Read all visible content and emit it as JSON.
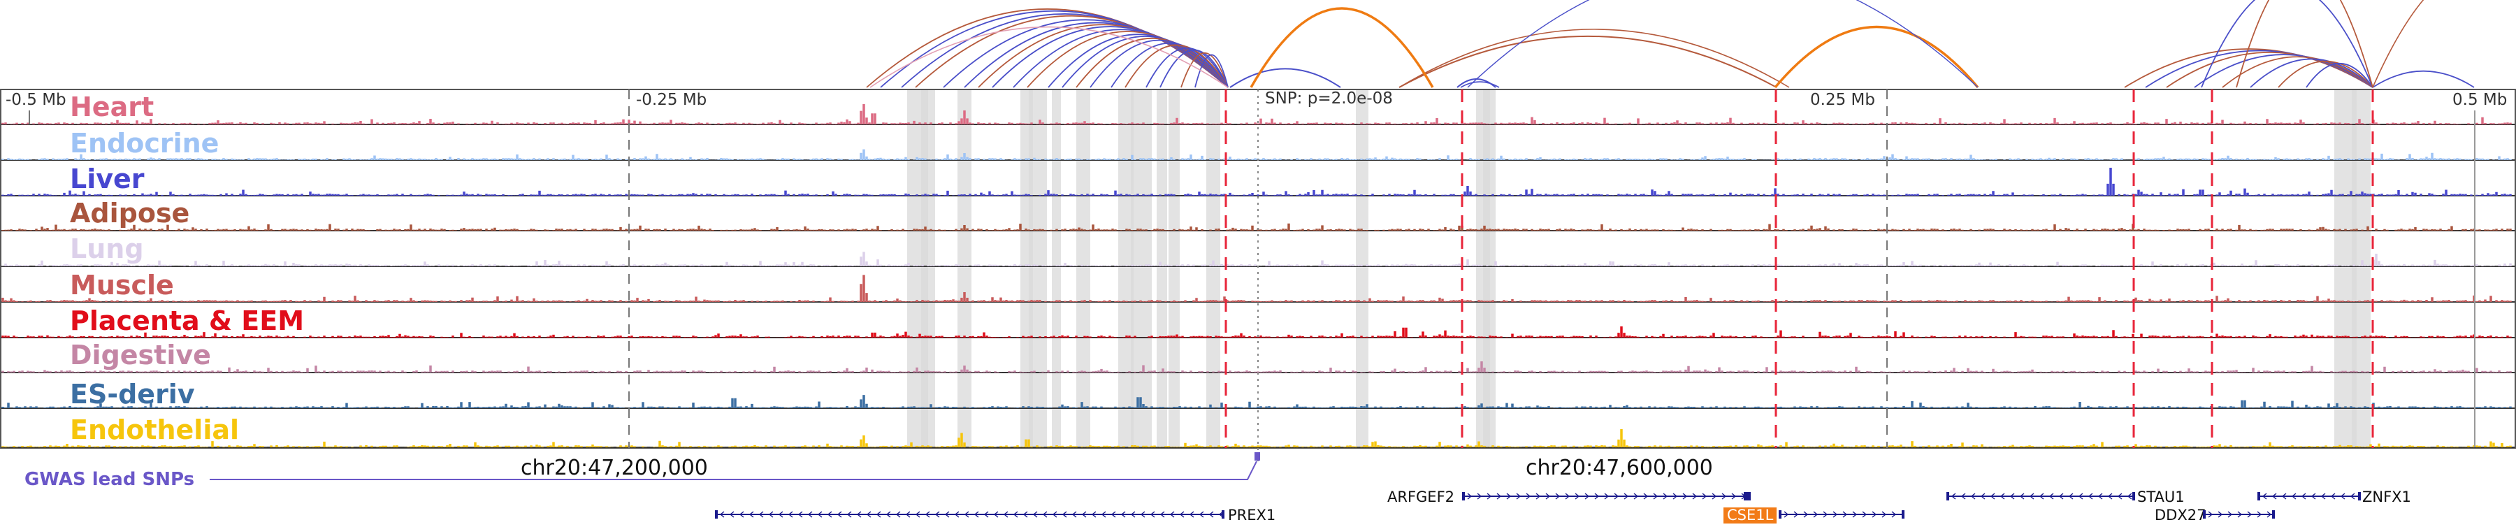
{
  "colors": {
    "loop_primary": "#4a4fc9",
    "loop_secondary": "#b55a3c",
    "loop_highlight": "#ef7b12",
    "loop_pink": "#e3a0b4",
    "red_dashed": "#e8253a",
    "grey_band": "#d9d9d9",
    "gwas": "#6a57c8",
    "gene": "#1a1a8c",
    "highlight_gene_bg": "#f27b17"
  },
  "ruler_labels": {
    "left": "-0.5 Mb",
    "mid_left": "-0.25 Mb",
    "snp": "SNP: p=2.0e-08",
    "mid_right": "0.25 Mb",
    "right": "0.5 Mb"
  },
  "tracks": [
    {
      "name": "Heart",
      "color": "#dc6b83"
    },
    {
      "name": "Endocrine",
      "color": "#9ec3f5"
    },
    {
      "name": "Liver",
      "color": "#4747d0"
    },
    {
      "name": "Adipose",
      "color": "#a9553d"
    },
    {
      "name": "Lung",
      "color": "#dcd0ea"
    },
    {
      "name": "Muscle",
      "color": "#c85b5b"
    },
    {
      "name": "Placenta & EEM",
      "color": "#e10d1a"
    },
    {
      "name": "Digestive",
      "color": "#c486a5"
    },
    {
      "name": "ES-deriv",
      "color": "#3c6fa3"
    },
    {
      "name": "Endothelial",
      "color": "#f6c50c"
    }
  ],
  "gwas_label": "GWAS lead SNPs",
  "coordinates": {
    "left": "chr20:47,200,000",
    "right": "chr20:47,600,000"
  },
  "genes": {
    "arfgef2": "ARFGEF2",
    "stau1": "STAU1",
    "znfx1": "ZNFX1",
    "prex1": "PREX1",
    "cse1l": "CSE1L",
    "ddx27": "DDX27"
  }
}
